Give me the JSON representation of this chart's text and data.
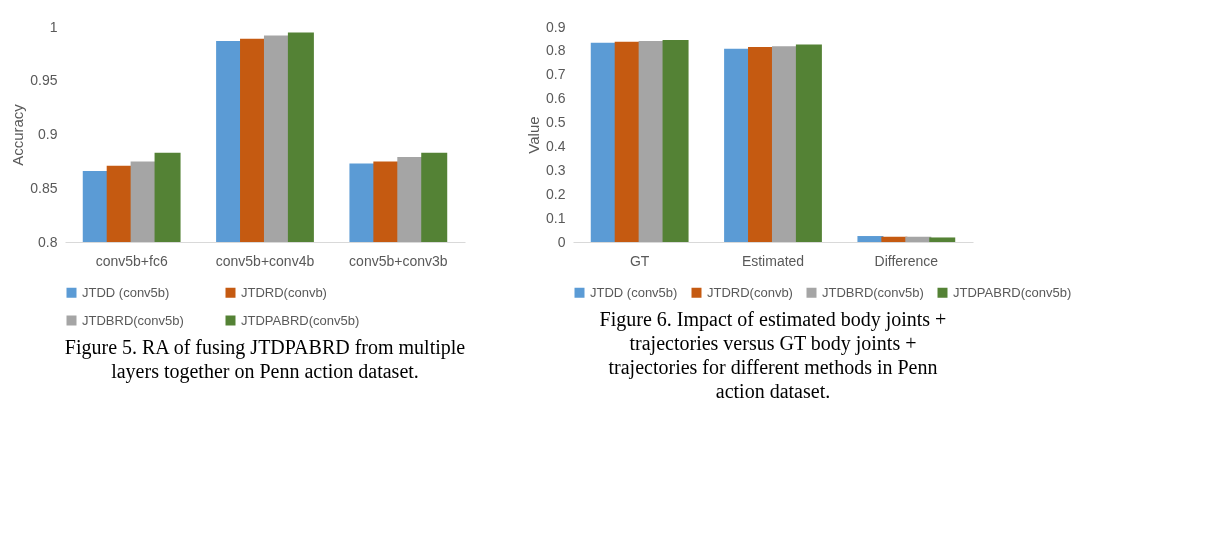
{
  "chart_data": [
    {
      "type": "bar",
      "ylabel": "Accuracy",
      "categories": [
        "conv5b+fc6",
        "conv5b+conv4b",
        "conv5b+conv3b"
      ],
      "ylim": [
        0.8,
        1
      ],
      "yticks": [
        0.8,
        0.85,
        0.9,
        0.95,
        1
      ],
      "grid": false,
      "legend": "bottom",
      "series": [
        {
          "name": "JTDD (conv5b)",
          "color": "#5b9bd5",
          "values": [
            0.866,
            0.987,
            0.873
          ]
        },
        {
          "name": "JTDRD(convb)",
          "color": "#c55a11",
          "values": [
            0.871,
            0.989,
            0.875
          ]
        },
        {
          "name": "JTDBRD(conv5b)",
          "color": "#a5a5a5",
          "values": [
            0.875,
            0.992,
            0.879
          ]
        },
        {
          "name": "JTDPABRD(conv5b)",
          "color": "#548235",
          "values": [
            0.883,
            0.995,
            0.883
          ]
        }
      ],
      "annotations": [
        "Figure 5. RA of fusing JTDPABRD from multiple layers together on Penn action dataset."
      ]
    },
    {
      "type": "bar",
      "ylabel": "Value",
      "categories": [
        "GT",
        "Estimated",
        "Difference"
      ],
      "ylim": [
        0,
        0.9
      ],
      "yticks": [
        0,
        0.1,
        0.2,
        0.3,
        0.4,
        0.5,
        0.6,
        0.7,
        0.8,
        0.9
      ],
      "grid": false,
      "legend": "bottom",
      "series": [
        {
          "name": "JTDD (conv5b)",
          "color": "#5b9bd5",
          "values": [
            0.834,
            0.809,
            0.025
          ]
        },
        {
          "name": "JTDRD(convb)",
          "color": "#c55a11",
          "values": [
            0.838,
            0.816,
            0.022
          ]
        },
        {
          "name": "JTDBRD(conv5b)",
          "color": "#a5a5a5",
          "values": [
            0.841,
            0.819,
            0.022
          ]
        },
        {
          "name": "JTDPABRD(conv5b)",
          "color": "#548235",
          "values": [
            0.846,
            0.827,
            0.019
          ]
        }
      ],
      "annotations": [
        "Figure 6. Impact of estimated body joints + trajectories versus GT body joints + trajectories for different methods in Penn action dataset."
      ]
    }
  ]
}
